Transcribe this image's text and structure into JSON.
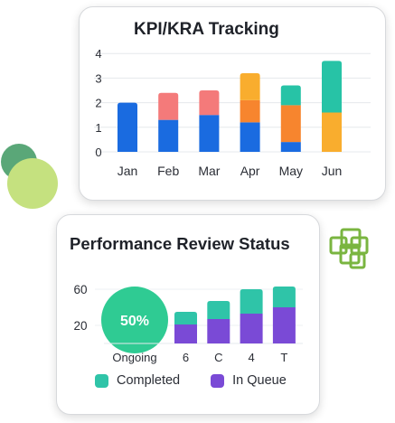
{
  "kpi_card": {
    "title": "KPI/KRA Tracking"
  },
  "performance_card": {
    "title": "Performance Review Status",
    "ongoing_percent_label": "50%",
    "legend": [
      {
        "label": "Completed",
        "color": "#2fc4a8"
      },
      {
        "label": "In Queue",
        "color": "#7a4ad6"
      }
    ]
  },
  "colors": {
    "blue": "#1a6be0",
    "salmon": "#f47a7a",
    "yellow": "#f9ad2e",
    "orange": "#f7852e",
    "teal": "#27c3a6",
    "purple": "#7a4ad6",
    "ongoing_circle": "#2fcb93",
    "deco_green_dark": "#5aa778",
    "deco_green_light": "#c5e17f",
    "deco_squares": "#7ab540"
  },
  "decorations": {
    "icon": "overlapping-squares-icon"
  },
  "chart_data": [
    {
      "type": "bar",
      "stacked": true,
      "title": "KPI/KRA Tracking",
      "categories": [
        "Jan",
        "Feb",
        "Mar",
        "Apr",
        "May",
        "Jun"
      ],
      "ylim": [
        0,
        4
      ],
      "yticks": [
        "0",
        "1",
        "2",
        "3",
        "4"
      ],
      "grid": true,
      "bars": [
        [
          {
            "value": 2.0,
            "color": "#1a6be0"
          }
        ],
        [
          {
            "value": 1.3,
            "color": "#1a6be0"
          },
          {
            "value": 1.1,
            "color": "#f47a7a"
          }
        ],
        [
          {
            "value": 1.5,
            "color": "#1a6be0"
          },
          {
            "value": 1.0,
            "color": "#f47a7a"
          }
        ],
        [
          {
            "value": 1.2,
            "color": "#1a6be0"
          },
          {
            "value": 0.9,
            "color": "#f7852e"
          },
          {
            "value": 1.1,
            "color": "#f9ad2e"
          }
        ],
        [
          {
            "value": 0.4,
            "color": "#1a6be0"
          },
          {
            "value": 1.5,
            "color": "#f7852e"
          },
          {
            "value": 0.8,
            "color": "#27c3a6"
          }
        ],
        [
          {
            "value": 1.6,
            "color": "#f9ad2e"
          },
          {
            "value": 2.1,
            "color": "#27c3a6"
          }
        ]
      ]
    },
    {
      "type": "bar",
      "stacked": true,
      "title": "Performance Review Status",
      "categories": [
        "6",
        "C",
        "4",
        "T"
      ],
      "ylim": [
        0,
        72
      ],
      "yticks": [
        "20",
        "60"
      ],
      "series": [
        {
          "name": "In Queue",
          "color": "#7a4ad6",
          "values": [
            21,
            27,
            33,
            40
          ]
        },
        {
          "name": "Completed",
          "color": "#2fc4a8",
          "values": [
            14,
            20,
            27,
            23
          ]
        }
      ],
      "ongoing": {
        "label": "Ongoing",
        "percent": 50
      }
    }
  ]
}
